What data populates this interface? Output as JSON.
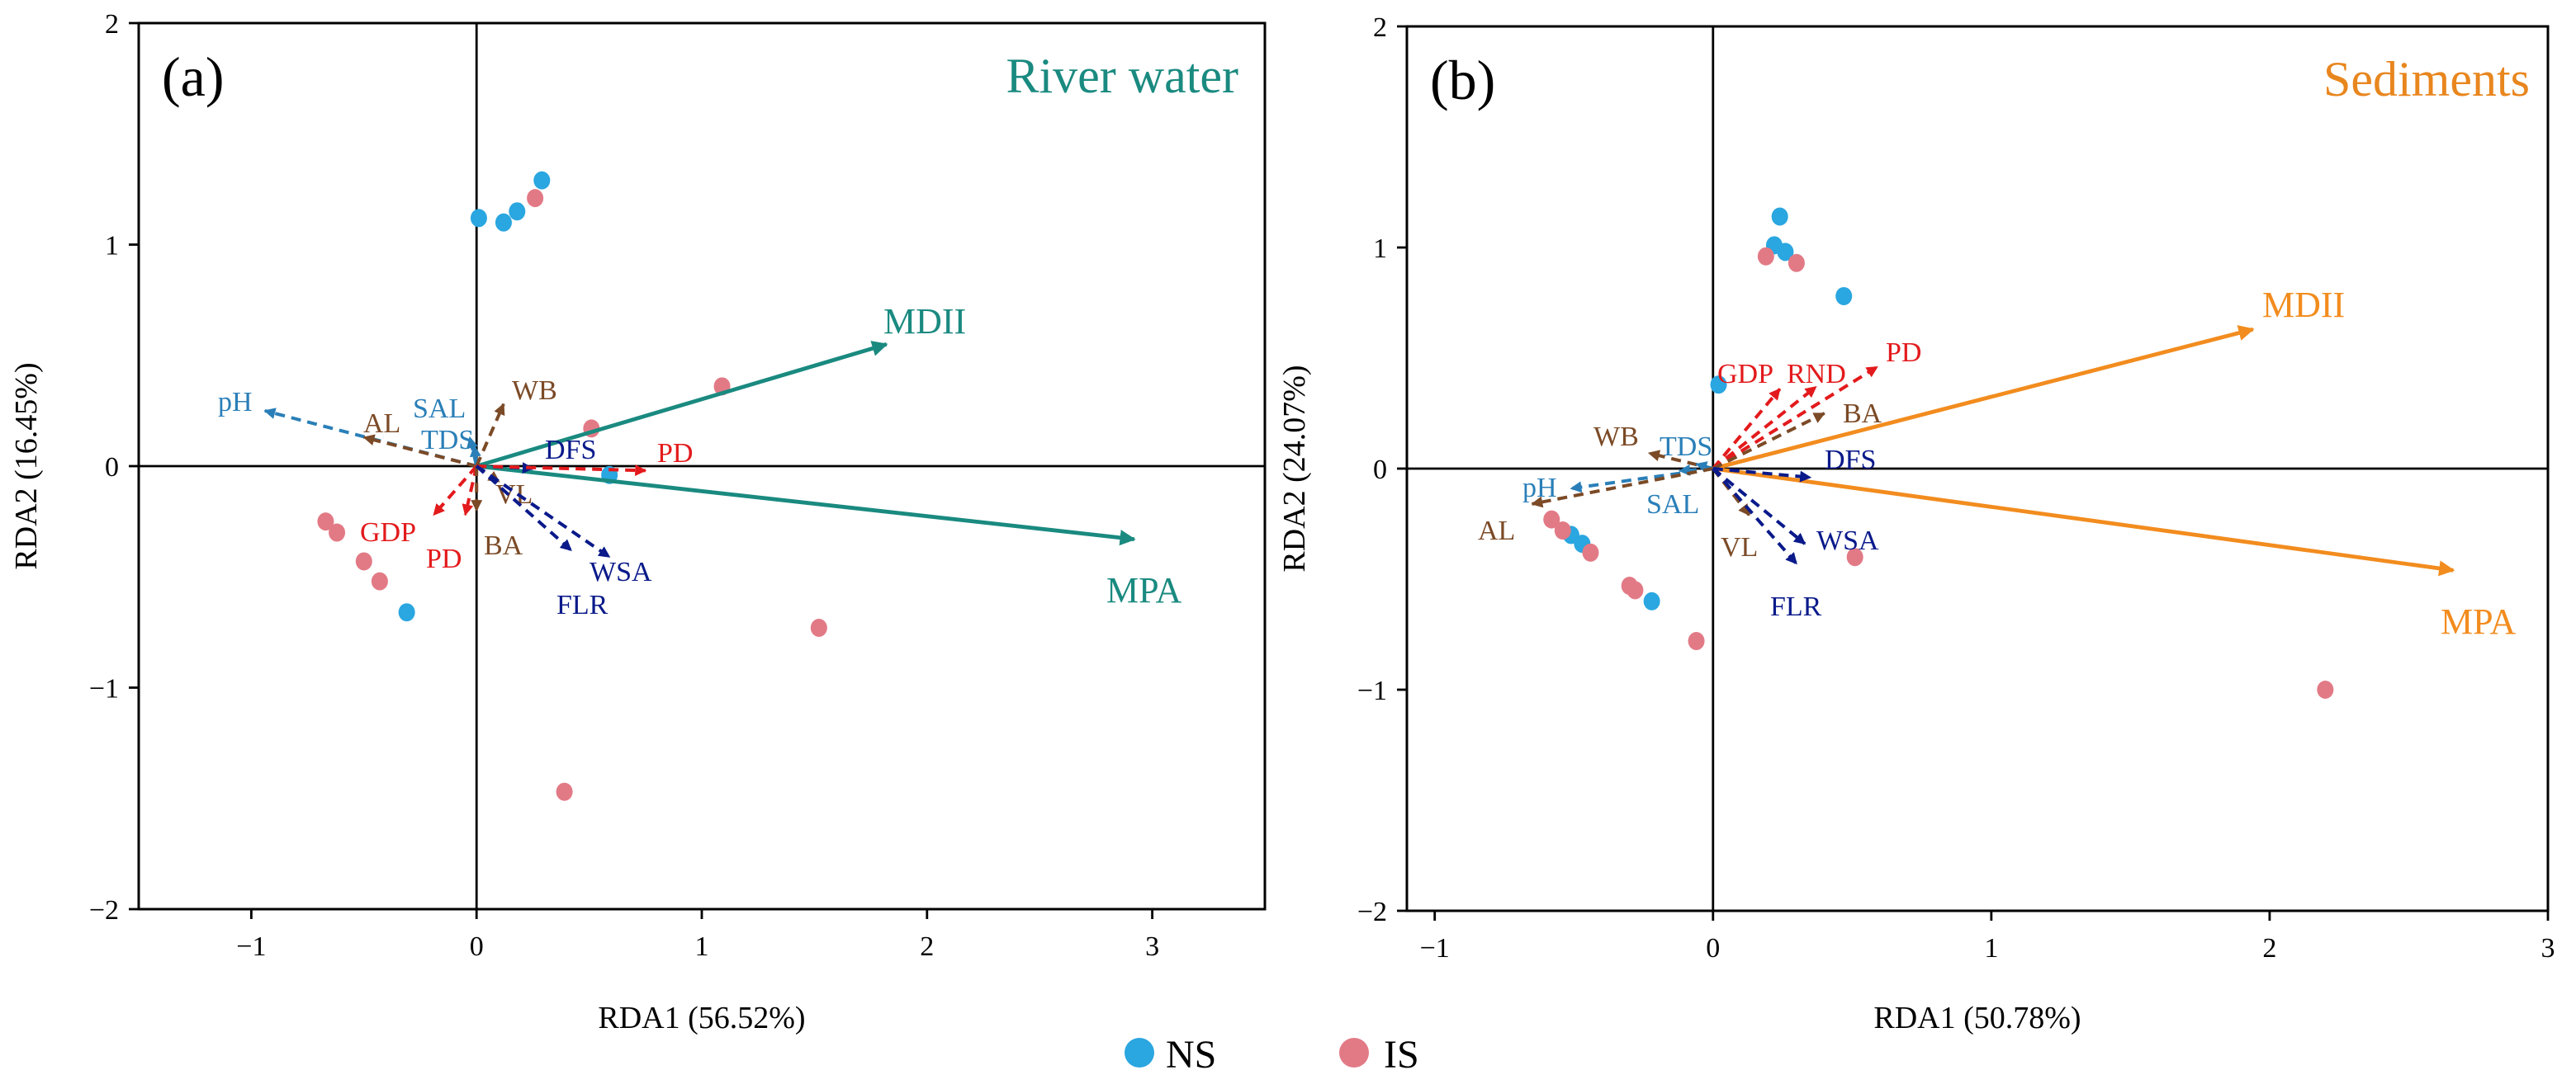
{
  "legend": {
    "items": [
      {
        "label": "NS",
        "color": "#2aa6e0"
      },
      {
        "label": "IS",
        "color": "#e27a86"
      }
    ]
  },
  "chart_data": [
    {
      "type": "scatter",
      "panel_label": "(a)",
      "title": "River water",
      "title_color": "#1a8a80",
      "xlabel": "RDA1 (56.52%)",
      "ylabel": "RDA2 (16.45%)",
      "xlim": [
        -1.5,
        3.5
      ],
      "ylim": [
        -2,
        2
      ],
      "xticks": [
        "−1",
        "0",
        "1",
        "2",
        "3"
      ],
      "xtick_values": [
        -1,
        0,
        1,
        2,
        3
      ],
      "yticks": [
        "−2",
        "−1",
        "0",
        "1",
        "2"
      ],
      "ytick_values": [
        -2,
        -1,
        0,
        1,
        2
      ],
      "series": [
        {
          "name": "NS",
          "points": [
            [
              0.01,
              1.12
            ],
            [
              0.12,
              1.1
            ],
            [
              0.18,
              1.15
            ],
            [
              0.29,
              1.29
            ],
            [
              -0.31,
              -0.66
            ],
            [
              0.59,
              -0.04
            ]
          ]
        },
        {
          "name": "IS",
          "points": [
            [
              0.26,
              1.21
            ],
            [
              0.51,
              0.17
            ],
            [
              1.09,
              0.36
            ],
            [
              1.52,
              -0.73
            ],
            [
              0.39,
              -1.47
            ],
            [
              -0.67,
              -0.25
            ],
            [
              -0.62,
              -0.3
            ],
            [
              -0.5,
              -0.43
            ],
            [
              -0.43,
              -0.52
            ]
          ]
        }
      ],
      "arrows": [
        {
          "label": "MDII",
          "x": 1.82,
          "y": 0.55,
          "color": "#1a8a80",
          "style": "solid"
        },
        {
          "label": "MPA",
          "x": 2.92,
          "y": -0.33,
          "color": "#1a8a80",
          "style": "solid"
        },
        {
          "label": "pH",
          "x": -0.94,
          "y": 0.25,
          "color": "#2a7fb8",
          "style": "dashed"
        },
        {
          "label": "AL",
          "x": -0.5,
          "y": 0.13,
          "color": "#7b4a26",
          "style": "dashed"
        },
        {
          "label": "SAL",
          "x": -0.03,
          "y": 0.13,
          "color": "#2a7fb8",
          "style": "dashed"
        },
        {
          "label": "TDS",
          "x": -0.01,
          "y": 0.09,
          "color": "#2a7fb8",
          "style": "dashed"
        },
        {
          "label": "WB",
          "x": 0.12,
          "y": 0.28,
          "color": "#7b4a26",
          "style": "dashed"
        },
        {
          "label": "DFS",
          "x": 0.25,
          "y": -0.01,
          "color": "#0a1a8a",
          "style": "dashed"
        },
        {
          "label": "PD",
          "x": 0.75,
          "y": -0.02,
          "color": "#e31a1c",
          "style": "dashed"
        },
        {
          "label": "VL",
          "x": 0.1,
          "y": -0.07,
          "color": "#7b4a26",
          "style": "dashed"
        },
        {
          "label": "GDP",
          "x": -0.19,
          "y": -0.22,
          "color": "#e31a1c",
          "style": "dashed"
        },
        {
          "label": "PD",
          "x": -0.05,
          "y": -0.22,
          "color": "#e31a1c",
          "style": "dashed"
        },
        {
          "label": "BA",
          "x": 0.0,
          "y": -0.2,
          "color": "#7b4a26",
          "style": "dashed"
        },
        {
          "label": "WSA",
          "x": 0.59,
          "y": -0.41,
          "color": "#0a1a8a",
          "style": "dashed"
        },
        {
          "label": "FLR",
          "x": 0.42,
          "y": -0.38,
          "color": "#0a1a8a",
          "style": "dashed"
        }
      ]
    },
    {
      "type": "scatter",
      "panel_label": "(b)",
      "title": "Sediments",
      "title_color": "#e8861e",
      "xlabel": "RDA1 (50.78%)",
      "ylabel": "RDA2 (24.07%)",
      "xlim": [
        -1.1,
        3.0
      ],
      "ylim": [
        -2,
        2
      ],
      "xticks": [
        "−1",
        "0",
        "1",
        "2",
        "3"
      ],
      "xtick_values": [
        -1,
        0,
        1,
        2,
        3
      ],
      "yticks": [
        "−2",
        "−1",
        "0",
        "1",
        "2"
      ],
      "ytick_values": [
        -2,
        -1,
        0,
        1,
        2
      ],
      "series": [
        {
          "name": "NS",
          "points": [
            [
              0.24,
              1.14
            ],
            [
              0.22,
              1.01
            ],
            [
              0.26,
              0.98
            ],
            [
              0.47,
              0.78
            ],
            [
              0.02,
              0.38
            ],
            [
              -0.51,
              -0.3
            ],
            [
              -0.47,
              -0.34
            ],
            [
              -0.22,
              -0.6
            ]
          ]
        },
        {
          "name": "IS",
          "points": [
            [
              0.19,
              0.96
            ],
            [
              0.3,
              0.93
            ],
            [
              -0.58,
              -0.23
            ],
            [
              -0.54,
              -0.28
            ],
            [
              -0.44,
              -0.38
            ],
            [
              -0.3,
              -0.53
            ],
            [
              -0.28,
              -0.55
            ],
            [
              -0.06,
              -0.78
            ],
            [
              0.51,
              -0.4
            ],
            [
              2.2,
              -1.0
            ]
          ]
        }
      ],
      "arrows": [
        {
          "label": "MDII",
          "x": 1.94,
          "y": 0.63,
          "color": "#f28c1e",
          "style": "solid"
        },
        {
          "label": "MPA",
          "x": 2.66,
          "y": -0.46,
          "color": "#f28c1e",
          "style": "solid"
        },
        {
          "label": "PD",
          "x": 0.59,
          "y": 0.46,
          "color": "#e31a1c",
          "style": "dashed"
        },
        {
          "label": "RND",
          "x": 0.37,
          "y": 0.37,
          "color": "#e31a1c",
          "style": "dashed"
        },
        {
          "label": "GDP",
          "x": 0.24,
          "y": 0.36,
          "color": "#e31a1c",
          "style": "dashed"
        },
        {
          "label": "BA",
          "x": 0.4,
          "y": 0.25,
          "color": "#7b4a26",
          "style": "dashed"
        },
        {
          "label": "WB",
          "x": -0.23,
          "y": 0.07,
          "color": "#7b4a26",
          "style": "dashed"
        },
        {
          "label": "TDS",
          "x": -0.06,
          "y": 0.02,
          "color": "#2a7fb8",
          "style": "dashed"
        },
        {
          "label": "DFS",
          "x": 0.35,
          "y": -0.04,
          "color": "#0a1a8a",
          "style": "dashed"
        },
        {
          "label": "pH",
          "x": -0.51,
          "y": -0.09,
          "color": "#2a7fb8",
          "style": "dashed"
        },
        {
          "label": "SAL",
          "x": -0.12,
          "y": -0.01,
          "color": "#2a7fb8",
          "style": "dashed"
        },
        {
          "label": "AL",
          "x": -0.65,
          "y": -0.16,
          "color": "#7b4a26",
          "style": "dashed"
        },
        {
          "label": "VL",
          "x": 0.13,
          "y": -0.21,
          "color": "#7b4a26",
          "style": "dashed"
        },
        {
          "label": "WSA",
          "x": 0.33,
          "y": -0.34,
          "color": "#0a1a8a",
          "style": "dashed"
        },
        {
          "label": "FLR",
          "x": 0.3,
          "y": -0.43,
          "color": "#0a1a8a",
          "style": "dashed"
        }
      ]
    }
  ]
}
